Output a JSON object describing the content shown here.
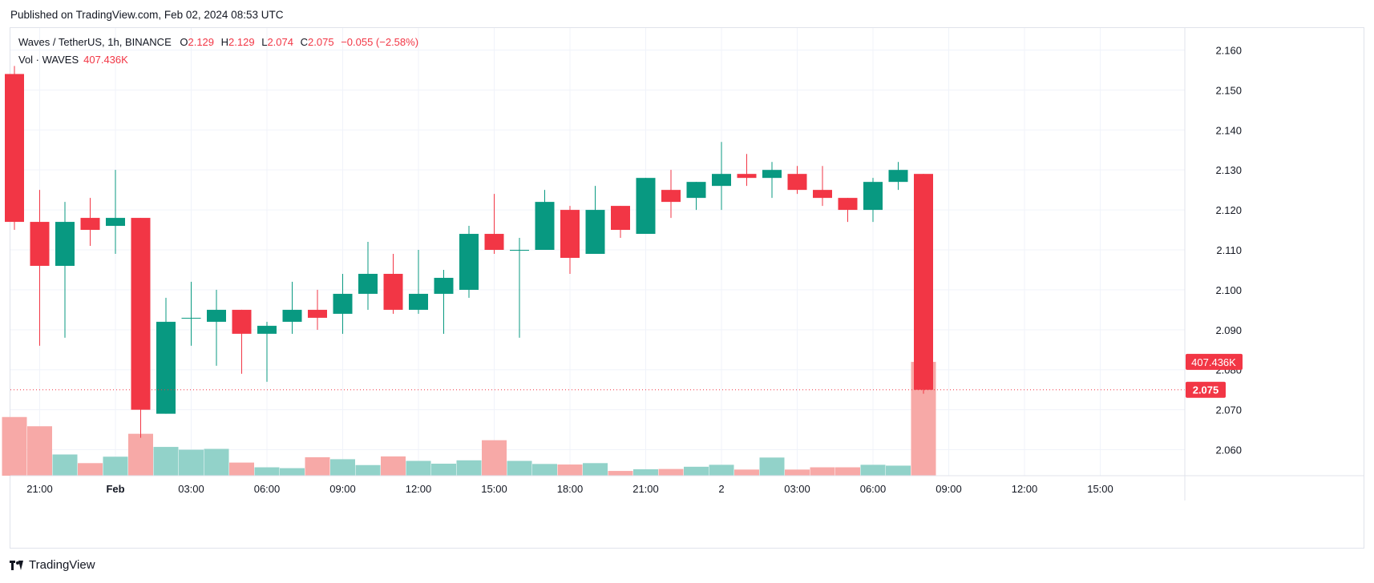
{
  "header": {
    "published": "Published on TradingView.com, Feb 02, 2024 08:53 UTC"
  },
  "legend": {
    "symbol": "Waves / TetherUS, 1h, BINANCE",
    "o_label": "O",
    "o": "2.129",
    "h_label": "H",
    "h": "2.129",
    "l_label": "L",
    "l": "2.074",
    "c_label": "C",
    "c": "2.075",
    "change": "−0.055 (−2.58%)",
    "vol_label": "Vol · WAVES",
    "vol_value": "407.436K"
  },
  "footer": {
    "brand": "TradingView"
  },
  "colors": {
    "up": "#089981",
    "down": "#f23645",
    "up_vol": "#92d2c9",
    "down_vol": "#f7a9a7",
    "grid": "#f0f3fa",
    "text": "#131722"
  },
  "chart_data": {
    "type": "candlestick",
    "title": "Waves / TetherUS, 1h, BINANCE",
    "ylim": [
      2.0535,
      2.1655
    ],
    "y_ticks": [
      "2.160",
      "2.150",
      "2.140",
      "2.130",
      "2.120",
      "2.110",
      "2.100",
      "2.090",
      "2.080",
      "2.070",
      "2.060"
    ],
    "x_ticks": [
      {
        "label": "21:00",
        "index": 1
      },
      {
        "label": "Feb",
        "index": 4,
        "bold": true
      },
      {
        "label": "03:00",
        "index": 7
      },
      {
        "label": "06:00",
        "index": 10
      },
      {
        "label": "09:00",
        "index": 13
      },
      {
        "label": "12:00",
        "index": 16
      },
      {
        "label": "15:00",
        "index": 19
      },
      {
        "label": "18:00",
        "index": 22
      },
      {
        "label": "21:00",
        "index": 25
      },
      {
        "label": "2",
        "index": 28
      },
      {
        "label": "03:00",
        "index": 31
      },
      {
        "label": "06:00",
        "index": 34
      },
      {
        "label": "09:00",
        "index": 37
      },
      {
        "label": "12:00",
        "index": 40
      },
      {
        "label": "15:00",
        "index": 43
      }
    ],
    "candles": [
      {
        "o": 2.154,
        "h": 2.156,
        "l": 2.115,
        "c": 2.117
      },
      {
        "o": 2.117,
        "h": 2.125,
        "l": 2.086,
        "c": 2.106
      },
      {
        "o": 2.106,
        "h": 2.122,
        "l": 2.088,
        "c": 2.117
      },
      {
        "o": 2.118,
        "h": 2.123,
        "l": 2.111,
        "c": 2.115
      },
      {
        "o": 2.116,
        "h": 2.13,
        "l": 2.109,
        "c": 2.118
      },
      {
        "o": 2.118,
        "h": 2.118,
        "l": 2.063,
        "c": 2.07
      },
      {
        "o": 2.069,
        "h": 2.098,
        "l": 2.069,
        "c": 2.092
      },
      {
        "o": 2.093,
        "h": 2.102,
        "l": 2.086,
        "c": 2.093
      },
      {
        "o": 2.092,
        "h": 2.1,
        "l": 2.081,
        "c": 2.095
      },
      {
        "o": 2.095,
        "h": 2.095,
        "l": 2.079,
        "c": 2.089
      },
      {
        "o": 2.089,
        "h": 2.092,
        "l": 2.077,
        "c": 2.091
      },
      {
        "o": 2.092,
        "h": 2.102,
        "l": 2.089,
        "c": 2.095
      },
      {
        "o": 2.095,
        "h": 2.1,
        "l": 2.09,
        "c": 2.093
      },
      {
        "o": 2.094,
        "h": 2.104,
        "l": 2.089,
        "c": 2.099
      },
      {
        "o": 2.099,
        "h": 2.112,
        "l": 2.095,
        "c": 2.104
      },
      {
        "o": 2.104,
        "h": 2.109,
        "l": 2.094,
        "c": 2.095
      },
      {
        "o": 2.095,
        "h": 2.11,
        "l": 2.094,
        "c": 2.099
      },
      {
        "o": 2.099,
        "h": 2.105,
        "l": 2.089,
        "c": 2.103
      },
      {
        "o": 2.1,
        "h": 2.116,
        "l": 2.098,
        "c": 2.114
      },
      {
        "o": 2.114,
        "h": 2.124,
        "l": 2.109,
        "c": 2.11
      },
      {
        "o": 2.11,
        "h": 2.113,
        "l": 2.088,
        "c": 2.11
      },
      {
        "o": 2.11,
        "h": 2.125,
        "l": 2.11,
        "c": 2.122
      },
      {
        "o": 2.12,
        "h": 2.121,
        "l": 2.104,
        "c": 2.108
      },
      {
        "o": 2.109,
        "h": 2.126,
        "l": 2.109,
        "c": 2.12
      },
      {
        "o": 2.121,
        "h": 2.121,
        "l": 2.113,
        "c": 2.115
      },
      {
        "o": 2.114,
        "h": 2.128,
        "l": 2.114,
        "c": 2.128
      },
      {
        "o": 2.125,
        "h": 2.13,
        "l": 2.118,
        "c": 2.122
      },
      {
        "o": 2.123,
        "h": 2.127,
        "l": 2.12,
        "c": 2.127
      },
      {
        "o": 2.126,
        "h": 2.137,
        "l": 2.12,
        "c": 2.129
      },
      {
        "o": 2.129,
        "h": 2.134,
        "l": 2.126,
        "c": 2.128
      },
      {
        "o": 2.128,
        "h": 2.132,
        "l": 2.123,
        "c": 2.13
      },
      {
        "o": 2.129,
        "h": 2.131,
        "l": 2.124,
        "c": 2.125
      },
      {
        "o": 2.125,
        "h": 2.131,
        "l": 2.121,
        "c": 2.123
      },
      {
        "o": 2.123,
        "h": 2.123,
        "l": 2.117,
        "c": 2.12
      },
      {
        "o": 2.12,
        "h": 2.128,
        "l": 2.117,
        "c": 2.127
      },
      {
        "o": 2.127,
        "h": 2.132,
        "l": 2.125,
        "c": 2.13
      },
      {
        "o": 2.129,
        "h": 2.129,
        "l": 2.074,
        "c": 2.075
      }
    ],
    "volume": [
      210,
      177,
      76,
      45,
      68,
      150,
      103,
      93,
      96,
      47,
      30,
      27,
      66,
      59,
      38,
      69,
      53,
      43,
      55,
      127,
      53,
      42,
      40,
      45,
      17,
      23,
      24,
      32,
      39,
      22,
      65,
      22,
      30,
      30,
      39,
      36,
      407.436
    ],
    "volume_axis_max": 430,
    "last_price": "2.075",
    "last_volume": "407.436K"
  }
}
